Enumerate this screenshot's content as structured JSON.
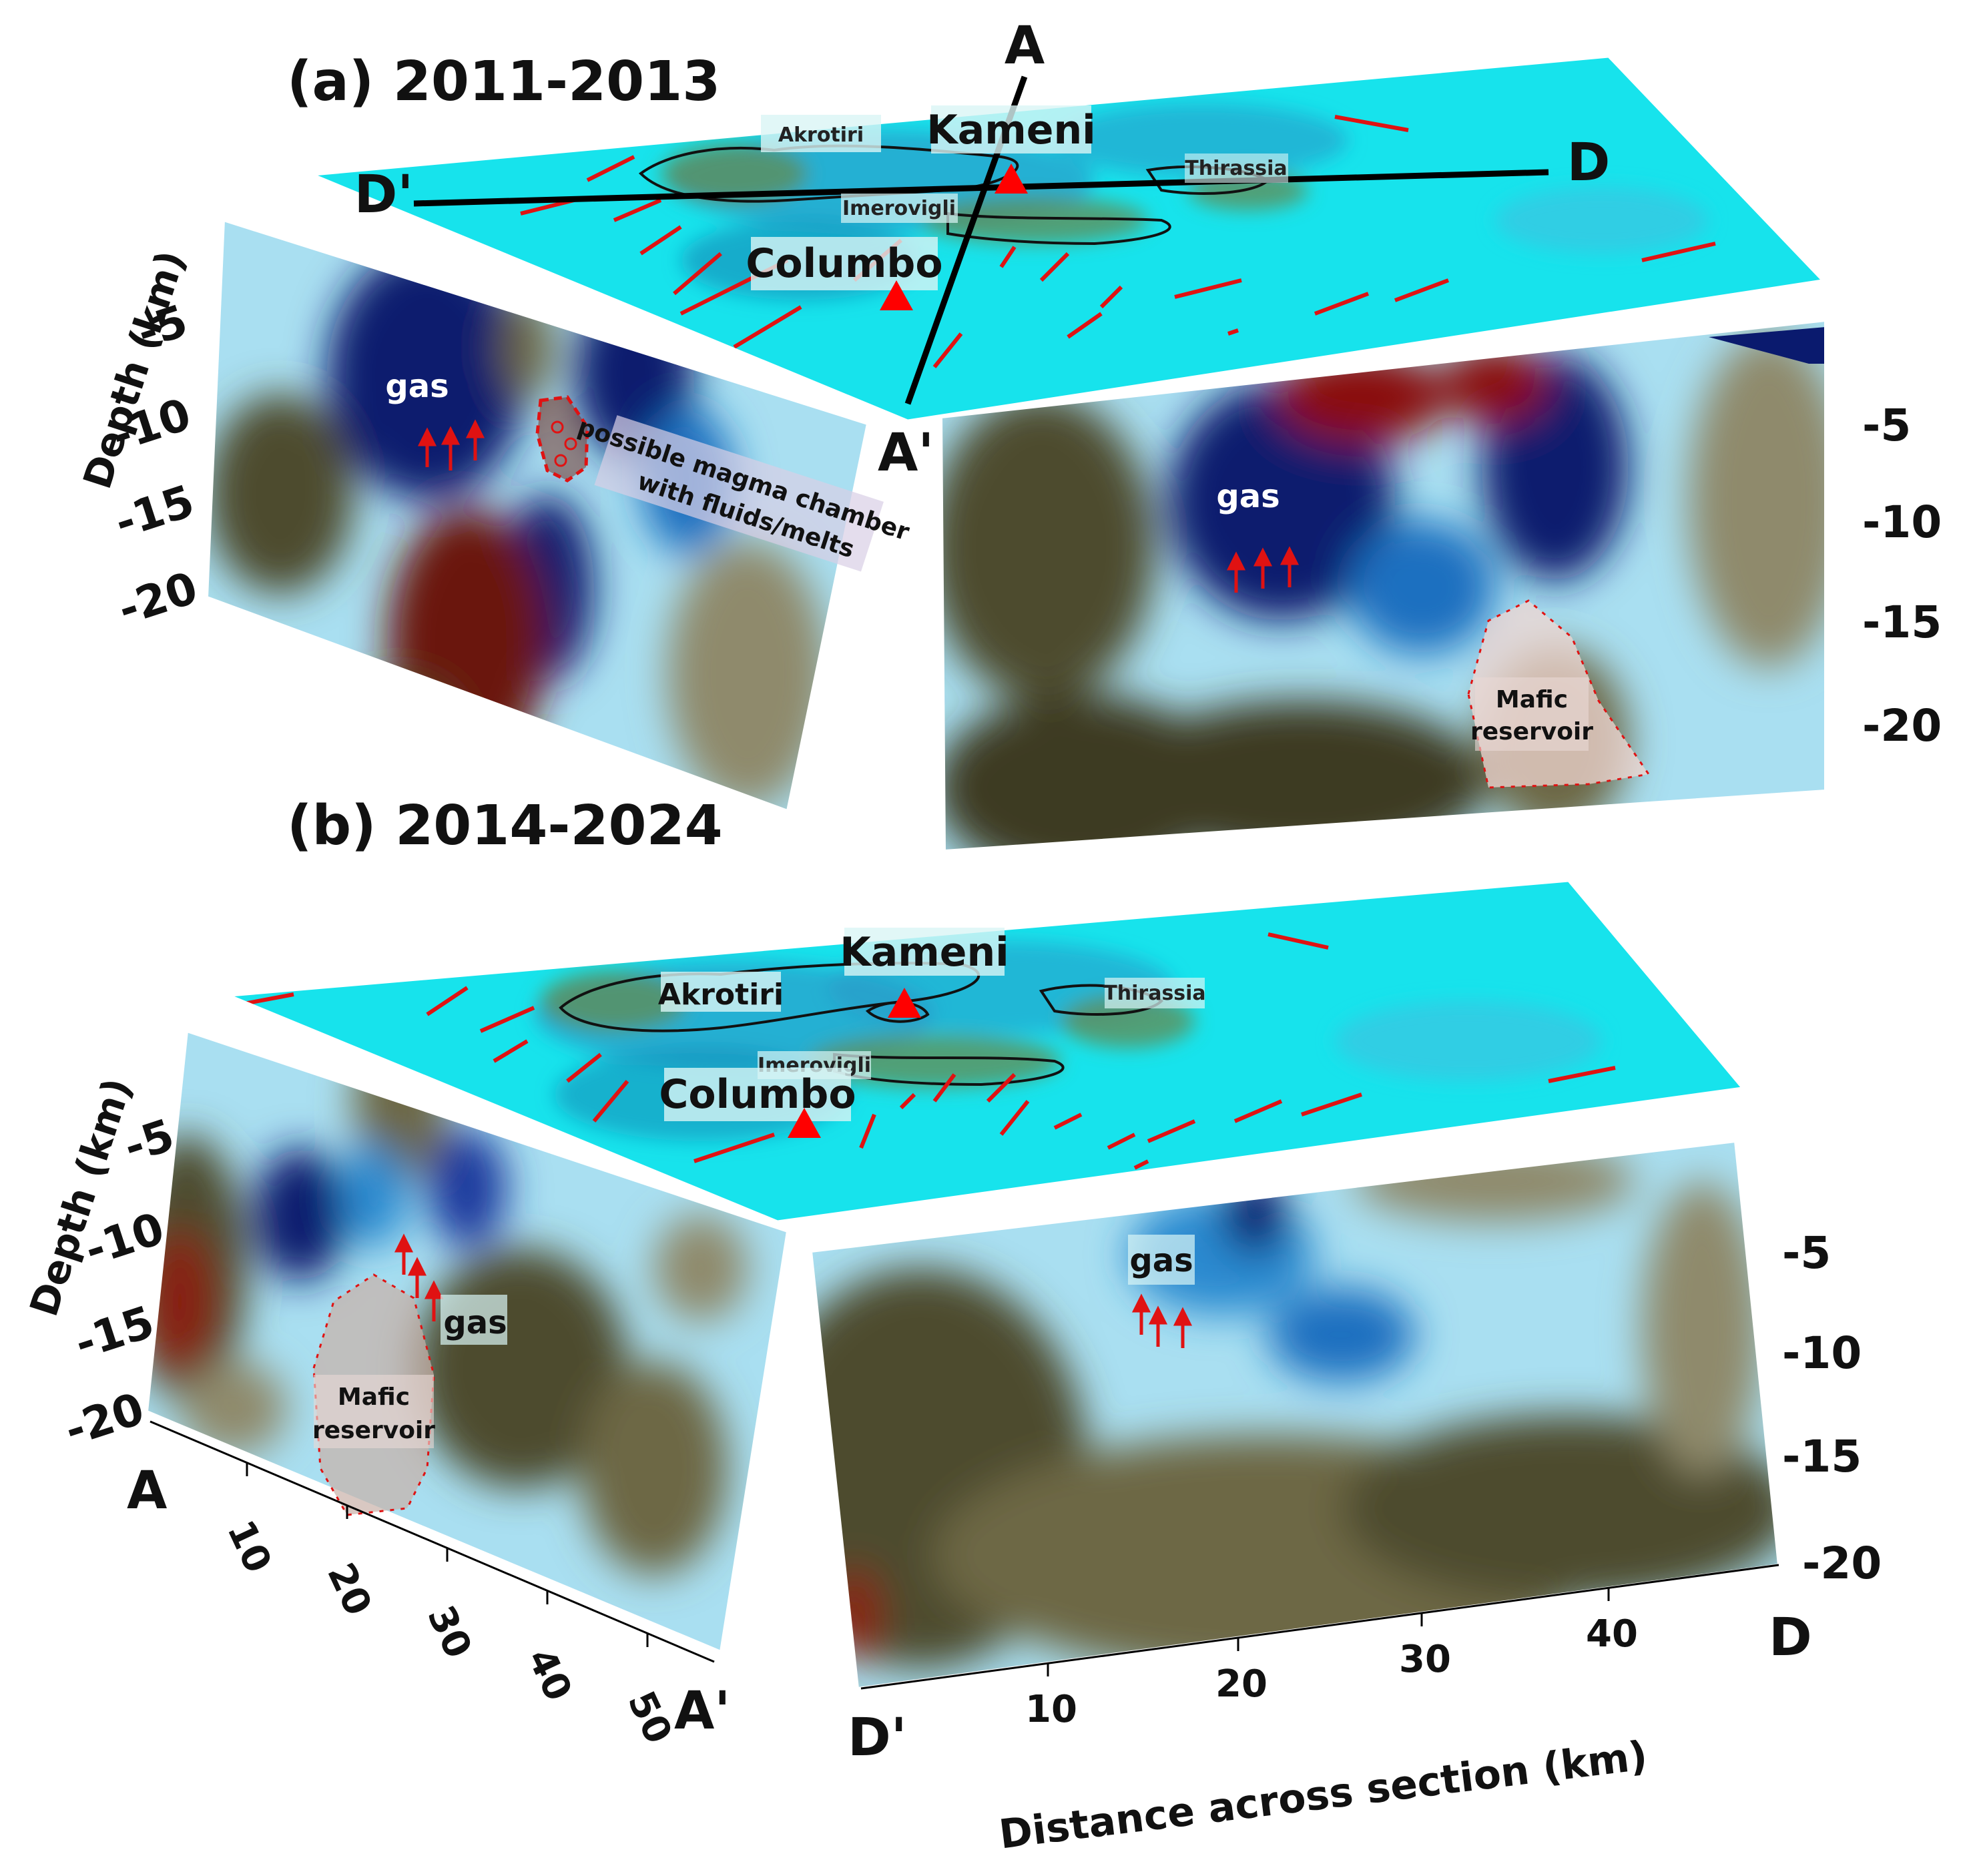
{
  "panels": [
    {
      "title": "(a) 2011-2013",
      "map": {
        "section_ends": {
          "a": "A",
          "a_prime": "A'",
          "d": "D",
          "d_prime": "D'"
        },
        "places": {
          "akrotiri": "Akrotiri",
          "kameni": "Kameni",
          "imerovigli": "Imerovigli",
          "thirassia": "Thirassia",
          "columbo": "Columbo"
        }
      },
      "section_aa": {
        "depth_ticks": [
          "-5",
          "-10",
          "-15",
          "-20"
        ],
        "ylabel": "Depth (km)",
        "gas_label": "gas",
        "note_line1": "possible magma chamber",
        "note_line2": "with fluids/melts"
      },
      "section_dd": {
        "end_label_aprime": "A'",
        "depth_ticks": [
          "-5",
          "-10",
          "-15",
          "-20"
        ],
        "gas_label": "gas",
        "reservoir_line1": "Mafic",
        "reservoir_line2": "reservoir"
      }
    },
    {
      "title": "(b) 2014-2024",
      "map": {
        "places": {
          "akrotiri": "Akrotiri",
          "kameni": "Kameni",
          "imerovigli": "Imerovigli",
          "thirassia": "Thirassia",
          "columbo": "Columbo"
        }
      },
      "section_aa": {
        "depth_ticks": [
          "-5",
          "-10",
          "-15",
          "-20"
        ],
        "ylabel": "Depth (km)",
        "gas_label": "gas",
        "reservoir_line1": "Mafic",
        "reservoir_line2": "reservoir",
        "end_a": "A",
        "end_a_prime": "A'",
        "distance_ticks": [
          "10",
          "20",
          "30",
          "40",
          "50"
        ]
      },
      "section_dd": {
        "depth_ticks": [
          "-5",
          "-10",
          "-15",
          "-20"
        ],
        "gas_label": "gas",
        "end_d": "D",
        "end_d_prime": "D'",
        "distance_ticks": [
          "10",
          "20",
          "30",
          "40"
        ],
        "xlabel": "Distance across section (km)"
      }
    }
  ],
  "colors": {
    "map_surface": "#17e3ec",
    "faults": "#e01212",
    "volcano": "#ff0000",
    "velocity_low": "#0a1a6e",
    "velocity_high": "#8a0b08",
    "neutral": "#4e4b2e"
  }
}
